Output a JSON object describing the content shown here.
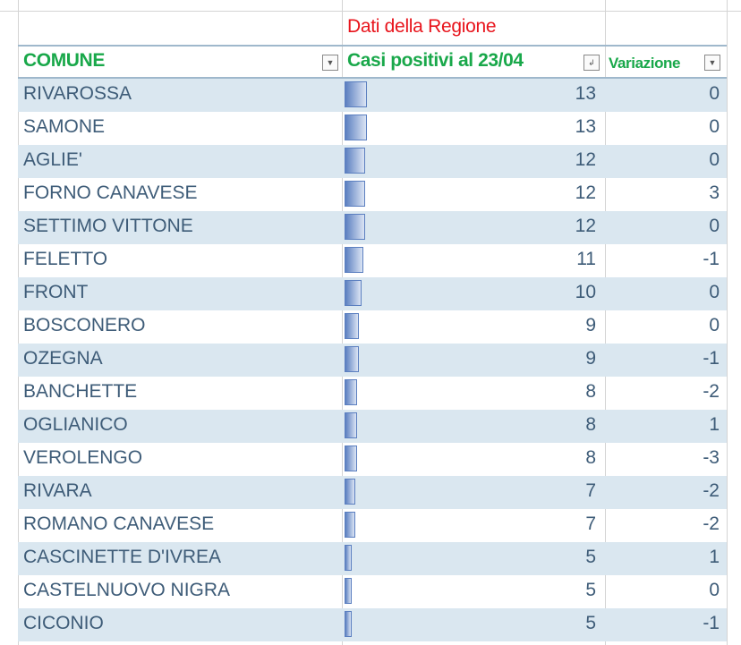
{
  "title": "Dati della Regione",
  "headers": {
    "comune": "COMUNE",
    "casi": "Casi positivi al 23/04",
    "variazione": "Variazione"
  },
  "colors": {
    "title": "#e8141c",
    "header": "#19a84a",
    "band": "#dae7f0",
    "databar": "#5b7fc0"
  },
  "rows": [
    {
      "comune": "RIVAROSSA",
      "casi": 13,
      "variazione": 0
    },
    {
      "comune": "SAMONE",
      "casi": 13,
      "variazione": 0
    },
    {
      "comune": "AGLIE'",
      "casi": 12,
      "variazione": 0
    },
    {
      "comune": "FORNO CANAVESE",
      "casi": 12,
      "variazione": 3
    },
    {
      "comune": "SETTIMO VITTONE",
      "casi": 12,
      "variazione": 0
    },
    {
      "comune": "FELETTO",
      "casi": 11,
      "variazione": -1
    },
    {
      "comune": "FRONT",
      "casi": 10,
      "variazione": 0
    },
    {
      "comune": "BOSCONERO",
      "casi": 9,
      "variazione": 0
    },
    {
      "comune": "OZEGNA",
      "casi": 9,
      "variazione": -1
    },
    {
      "comune": "BANCHETTE",
      "casi": 8,
      "variazione": -2
    },
    {
      "comune": "OGLIANICO",
      "casi": 8,
      "variazione": 1
    },
    {
      "comune": "VEROLENGO",
      "casi": 8,
      "variazione": -3
    },
    {
      "comune": "RIVARA",
      "casi": 7,
      "variazione": -2
    },
    {
      "comune": "ROMANO CANAVESE",
      "casi": 7,
      "variazione": -2
    },
    {
      "comune": "CASCINETTE D'IVREA",
      "casi": 5,
      "variazione": 1
    },
    {
      "comune": "CASTELNUOVO NIGRA",
      "casi": 5,
      "variazione": 0
    },
    {
      "comune": "CICONIO",
      "casi": 5,
      "variazione": -1
    }
  ]
}
